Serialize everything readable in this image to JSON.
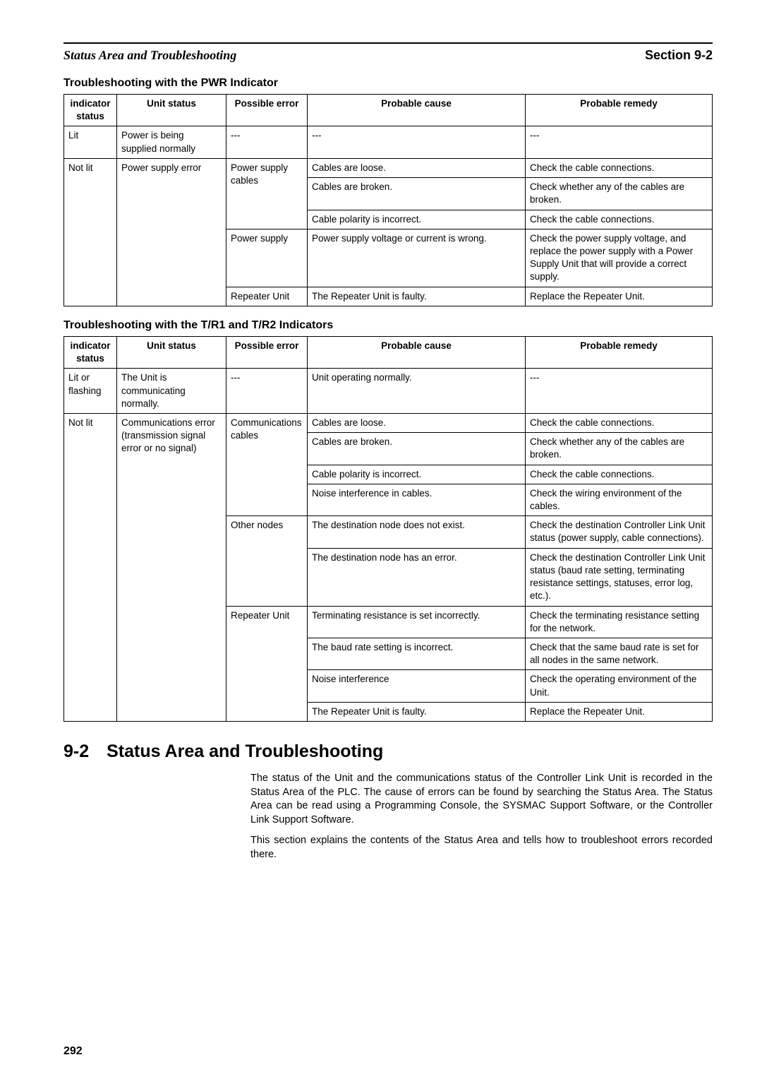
{
  "header": {
    "left": "Status Area and Troubleshooting",
    "right": "Section 9-2"
  },
  "table1": {
    "heading": "Troubleshooting with the PWR Indicator",
    "cols": [
      "indicator status",
      "Unit status",
      "Possible error",
      "Probable cause",
      "Probable remedy"
    ],
    "rows": {
      "r1": {
        "ind": "Lit",
        "unit": "Power is being supplied normally",
        "err": "---",
        "cause": "---",
        "remedy": "---"
      },
      "r2": {
        "ind": "Not lit",
        "unit": "Power supply error",
        "err": "Power supply cables",
        "cause": "Cables are loose.",
        "remedy": "Check the cable connections."
      },
      "r3": {
        "cause": "Cables are broken.",
        "remedy": "Check whether any of the cables are broken."
      },
      "r4": {
        "cause": "Cable polarity is incorrect.",
        "remedy": "Check the cable connections."
      },
      "r5": {
        "err": "Power supply",
        "cause": "Power supply voltage or current is wrong.",
        "remedy": "Check the power supply voltage, and replace the power supply with a Power Supply Unit that will provide a correct supply."
      },
      "r6": {
        "err": "Repeater Unit",
        "cause": "The Repeater Unit is faulty.",
        "remedy": "Replace the Repeater Unit."
      }
    }
  },
  "table2": {
    "heading": "Troubleshooting with the T/R1 and T/R2 Indicators",
    "cols": [
      "indicator status",
      "Unit status",
      "Possible error",
      "Probable cause",
      "Probable remedy"
    ],
    "rows": {
      "r1": {
        "ind": "Lit or flashing",
        "unit": "The Unit is communicating normally.",
        "err": "---",
        "cause": "Unit operating normally.",
        "remedy": "---"
      },
      "r2": {
        "ind": "Not lit",
        "unit": "Communications error (transmission signal error or no signal)",
        "err": "Communications cables",
        "cause": "Cables are loose.",
        "remedy": "Check the cable connections."
      },
      "r3": {
        "cause": "Cables are broken.",
        "remedy": "Check whether any of the cables are broken."
      },
      "r4": {
        "cause": "Cable polarity is incorrect.",
        "remedy": "Check the cable connections."
      },
      "r5": {
        "cause": "Noise interference in cables.",
        "remedy": "Check the wiring environment of the cables."
      },
      "r6": {
        "err": "Other nodes",
        "cause": "The destination node does not exist.",
        "remedy": "Check the destination Controller Link Unit status (power supply, cable connections)."
      },
      "r7": {
        "cause": "The destination node has an error.",
        "remedy": "Check the destination Controller Link Unit status (baud rate setting, terminating resistance settings, statuses, error log, etc.)."
      },
      "r8": {
        "err": "Repeater Unit",
        "cause": "Terminating resistance is set incorrectly.",
        "remedy": "Check the terminating resistance setting for the network."
      },
      "r9": {
        "cause": "The baud rate setting is incorrect.",
        "remedy": "Check that the same baud rate is set for all nodes in the same network."
      },
      "r10": {
        "cause": "Noise interference",
        "remedy": "Check the operating environment of the Unit."
      },
      "r11": {
        "cause": "The Repeater Unit is faulty.",
        "remedy": "Replace the Repeater Unit."
      }
    }
  },
  "section": {
    "heading": "9-2 Status Area and Troubleshooting",
    "p1": "The status of the Unit and the communications status of the Controller Link Unit is recorded in the Status Area of the PLC. The cause of errors can be found by searching the Status Area. The Status Area can be read using a Programming Console, the SYSMAC Support Software, or the Controller Link Support Software.",
    "p2": "This section explains the contents of the Status Area and tells how to troubleshoot errors recorded there."
  },
  "pageNumber": "292"
}
